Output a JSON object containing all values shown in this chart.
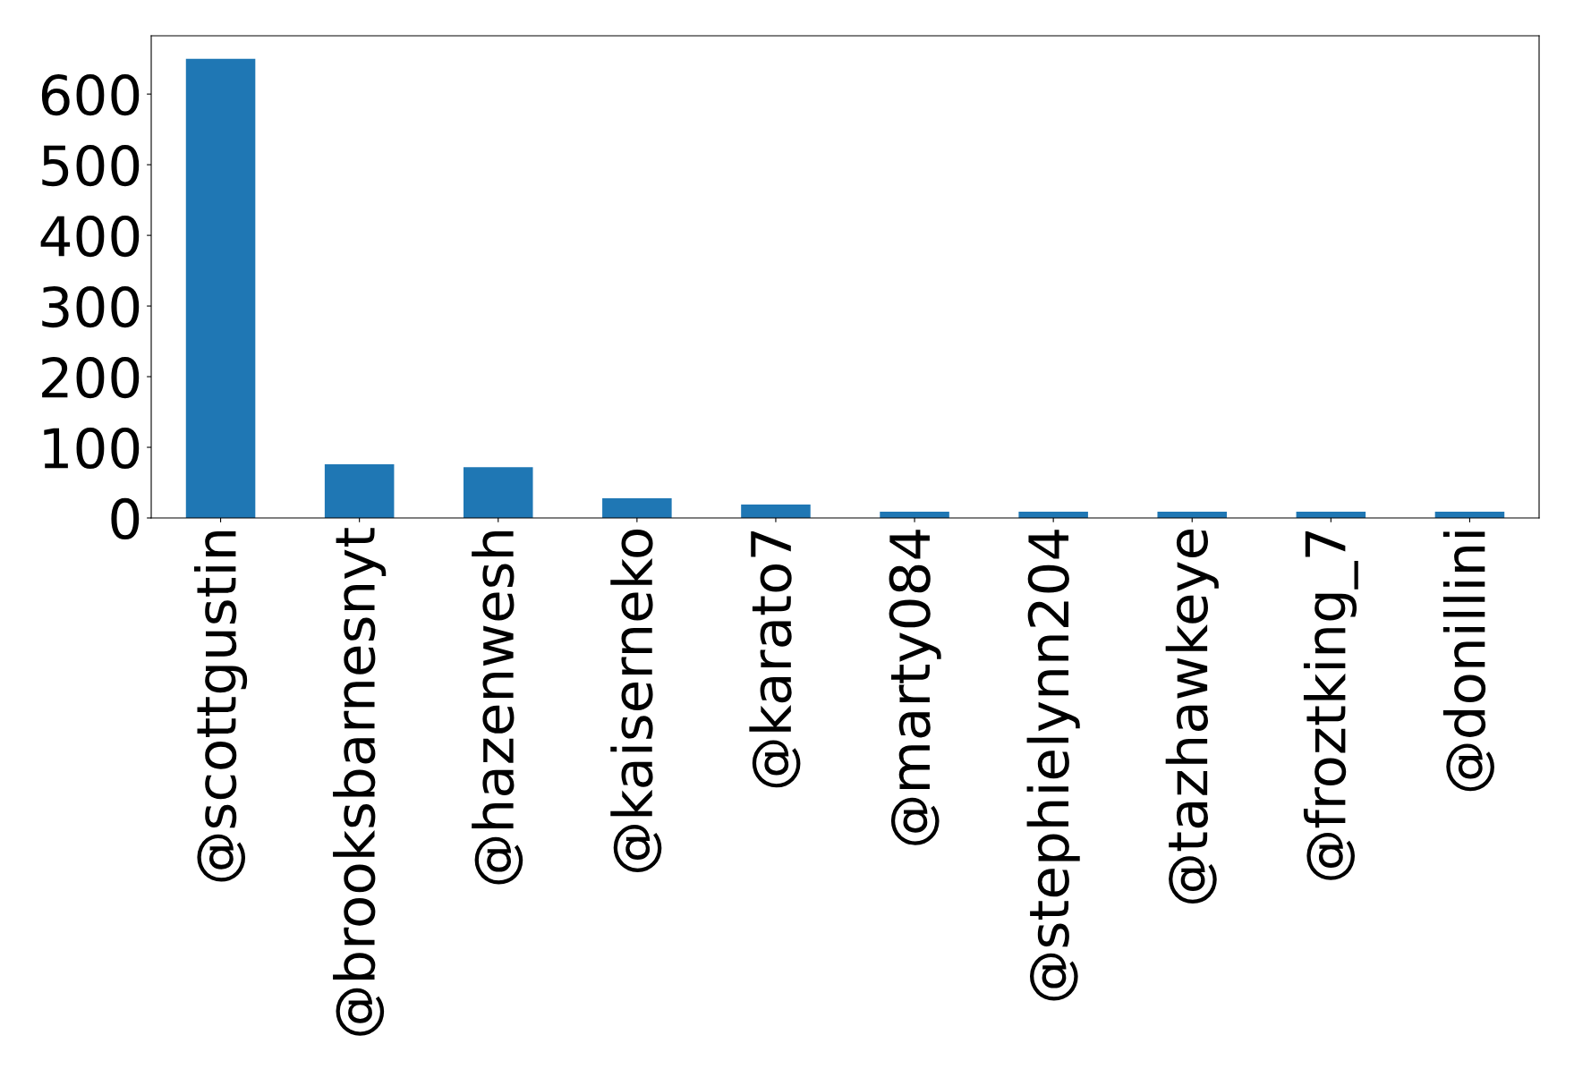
{
  "chart_data": {
    "type": "bar",
    "categories": [
      "@scottgustin",
      "@brooksbarnesnyt",
      "@hazenwesh",
      "@kaiserneko",
      "@karato7",
      "@marty084",
      "@stephielynn204",
      "@tazhawkeye",
      "@froztking_7",
      "@donillini"
    ],
    "values": [
      650,
      76,
      72,
      28,
      19,
      9,
      9,
      9,
      9,
      9
    ],
    "color": "#1f77b4",
    "ylim": [
      0,
      682.5
    ],
    "yticks": [
      0,
      100,
      200,
      300,
      400,
      500,
      600
    ],
    "grid": false,
    "legend": false
  }
}
